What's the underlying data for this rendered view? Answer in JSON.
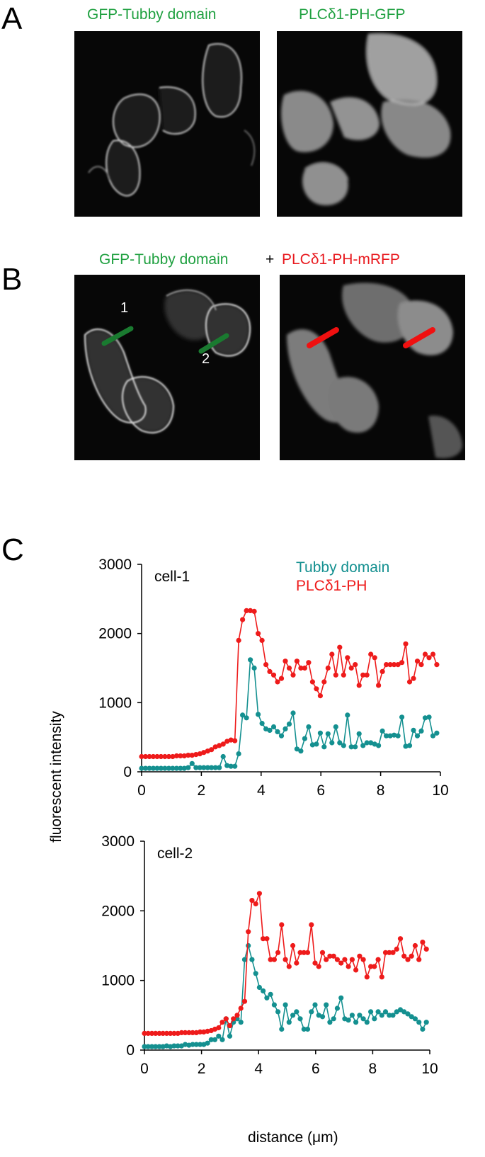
{
  "panel_a": {
    "letter": "A",
    "left_title": "GFP-Tubby domain",
    "right_title": "PLCδ1-PH-GFP"
  },
  "panel_b": {
    "letter": "B",
    "title_part1": "GFP-Tubby domain",
    "title_plus": "+",
    "title_part2": "PLCδ1-PH-mRFP",
    "marker1": "1",
    "marker2": "2"
  },
  "panel_c": {
    "letter": "C",
    "ylabel": "fluorescent intensity",
    "xlabel": "distance (μm)"
  },
  "colors": {
    "green_text": "#1fa040",
    "red_text": "#e8191e",
    "tubby_series": "#149090",
    "plc_series": "#ee1b1b",
    "green_marker": "#1a7a30",
    "red_marker": "#f01010"
  },
  "chart_data": [
    {
      "type": "line",
      "annotation": "cell-1",
      "ylim": [
        0,
        3000
      ],
      "xlim": [
        0,
        10
      ],
      "yticks": [
        "0",
        "1000",
        "2000",
        "3000"
      ],
      "xticks": [
        "0",
        "2",
        "4",
        "6",
        "8",
        "10"
      ],
      "legend": [
        "Tubby domain",
        "PLCδ1-PH"
      ],
      "series": [
        {
          "name": "Tubby domain",
          "x": [
            0,
            0.13,
            0.26,
            0.39,
            0.52,
            0.65,
            0.78,
            0.91,
            1.04,
            1.17,
            1.3,
            1.43,
            1.56,
            1.69,
            1.82,
            1.95,
            2.08,
            2.21,
            2.34,
            2.47,
            2.6,
            2.73,
            2.86,
            2.99,
            3.12,
            3.25,
            3.38,
            3.51,
            3.64,
            3.77,
            3.9,
            4.03,
            4.16,
            4.29,
            4.42,
            4.55,
            4.68,
            4.81,
            4.94,
            5.07,
            5.2,
            5.33,
            5.46,
            5.59,
            5.72,
            5.85,
            5.98,
            6.11,
            6.24,
            6.37,
            6.5,
            6.63,
            6.76,
            6.89,
            7.02,
            7.15,
            7.28,
            7.41,
            7.54,
            7.67,
            7.8,
            7.93,
            8.06,
            8.19,
            8.32,
            8.45,
            8.58,
            8.71,
            8.84,
            8.97,
            9.1,
            9.23,
            9.36,
            9.49,
            9.62,
            9.75,
            9.88
          ],
          "y": [
            50,
            50,
            50,
            50,
            50,
            50,
            50,
            50,
            50,
            50,
            50,
            50,
            60,
            120,
            60,
            60,
            60,
            60,
            60,
            60,
            60,
            220,
            90,
            80,
            80,
            260,
            820,
            780,
            1620,
            1500,
            830,
            700,
            620,
            600,
            650,
            580,
            520,
            620,
            690,
            850,
            330,
            300,
            480,
            650,
            390,
            400,
            560,
            360,
            550,
            420,
            650,
            420,
            380,
            820,
            360,
            360,
            550,
            380,
            420,
            420,
            400,
            380,
            590,
            520,
            520,
            530,
            520,
            790,
            370,
            380,
            600,
            520,
            590,
            780,
            790,
            520,
            560
          ]
        },
        {
          "name": "PLCδ1-PH",
          "x": [
            0,
            0.13,
            0.26,
            0.39,
            0.52,
            0.65,
            0.78,
            0.91,
            1.04,
            1.17,
            1.3,
            1.43,
            1.56,
            1.69,
            1.82,
            1.95,
            2.08,
            2.21,
            2.34,
            2.47,
            2.6,
            2.73,
            2.86,
            2.99,
            3.12,
            3.25,
            3.38,
            3.51,
            3.64,
            3.77,
            3.9,
            4.03,
            4.16,
            4.29,
            4.42,
            4.55,
            4.68,
            4.81,
            4.94,
            5.07,
            5.2,
            5.33,
            5.46,
            5.59,
            5.72,
            5.85,
            5.98,
            6.11,
            6.24,
            6.37,
            6.5,
            6.63,
            6.76,
            6.89,
            7.02,
            7.15,
            7.28,
            7.41,
            7.54,
            7.67,
            7.8,
            7.93,
            8.06,
            8.19,
            8.32,
            8.45,
            8.58,
            8.71,
            8.84,
            8.97,
            9.1,
            9.23,
            9.36,
            9.49,
            9.62,
            9.75,
            9.88
          ],
          "y": [
            220,
            220,
            220,
            220,
            220,
            220,
            220,
            220,
            220,
            230,
            230,
            230,
            240,
            240,
            250,
            260,
            280,
            300,
            320,
            360,
            380,
            400,
            440,
            460,
            450,
            1900,
            2200,
            2330,
            2330,
            2320,
            2000,
            1900,
            1550,
            1450,
            1400,
            1300,
            1350,
            1600,
            1500,
            1400,
            1600,
            1500,
            1500,
            1580,
            1300,
            1200,
            1100,
            1300,
            1500,
            1700,
            1400,
            1800,
            1400,
            1650,
            1500,
            1550,
            1250,
            1400,
            1400,
            1700,
            1650,
            1250,
            1450,
            1550,
            1550,
            1550,
            1550,
            1580,
            1850,
            1300,
            1350,
            1600,
            1550,
            1700,
            1650,
            1700,
            1550
          ]
        }
      ]
    },
    {
      "type": "line",
      "annotation": "cell-2",
      "ylim": [
        0,
        3000
      ],
      "xlim": [
        0,
        10
      ],
      "yticks": [
        "0",
        "1000",
        "2000",
        "3000"
      ],
      "xticks": [
        "0",
        "2",
        "4",
        "6",
        "8",
        "10"
      ],
      "series": [
        {
          "name": "Tubby domain",
          "x": [
            0,
            0.13,
            0.26,
            0.39,
            0.52,
            0.65,
            0.78,
            0.91,
            1.04,
            1.17,
            1.3,
            1.43,
            1.56,
            1.69,
            1.82,
            1.95,
            2.08,
            2.21,
            2.34,
            2.47,
            2.6,
            2.73,
            2.86,
            2.99,
            3.12,
            3.25,
            3.38,
            3.51,
            3.64,
            3.77,
            3.9,
            4.03,
            4.16,
            4.29,
            4.42,
            4.55,
            4.68,
            4.81,
            4.94,
            5.07,
            5.2,
            5.33,
            5.46,
            5.59,
            5.72,
            5.85,
            5.98,
            6.11,
            6.24,
            6.37,
            6.5,
            6.63,
            6.76,
            6.89,
            7.02,
            7.15,
            7.28,
            7.41,
            7.54,
            7.67,
            7.8,
            7.93,
            8.06,
            8.19,
            8.32,
            8.45,
            8.58,
            8.71,
            8.84,
            8.97,
            9.1,
            9.23,
            9.36,
            9.49,
            9.62,
            9.75,
            9.88
          ],
          "y": [
            50,
            50,
            50,
            50,
            50,
            50,
            60,
            50,
            60,
            60,
            60,
            80,
            70,
            80,
            80,
            80,
            80,
            100,
            150,
            150,
            200,
            150,
            450,
            200,
            400,
            450,
            400,
            1300,
            1500,
            1300,
            1100,
            900,
            850,
            750,
            800,
            650,
            550,
            300,
            650,
            400,
            500,
            550,
            450,
            300,
            300,
            550,
            650,
            500,
            480,
            650,
            400,
            450,
            600,
            750,
            450,
            430,
            500,
            400,
            500,
            450,
            400,
            550,
            450,
            550,
            500,
            550,
            500,
            500,
            550,
            580,
            550,
            520,
            480,
            450,
            400,
            300,
            400
          ]
        },
        {
          "name": "PLCδ1-PH",
          "x": [
            0,
            0.13,
            0.26,
            0.39,
            0.52,
            0.65,
            0.78,
            0.91,
            1.04,
            1.17,
            1.3,
            1.43,
            1.56,
            1.69,
            1.82,
            1.95,
            2.08,
            2.21,
            2.34,
            2.47,
            2.6,
            2.73,
            2.86,
            2.99,
            3.12,
            3.25,
            3.38,
            3.51,
            3.64,
            3.77,
            3.9,
            4.03,
            4.16,
            4.29,
            4.42,
            4.55,
            4.68,
            4.81,
            4.94,
            5.07,
            5.2,
            5.33,
            5.46,
            5.59,
            5.72,
            5.85,
            5.98,
            6.11,
            6.24,
            6.37,
            6.5,
            6.63,
            6.76,
            6.89,
            7.02,
            7.15,
            7.28,
            7.41,
            7.54,
            7.67,
            7.8,
            7.93,
            8.06,
            8.19,
            8.32,
            8.45,
            8.58,
            8.71,
            8.84,
            8.97,
            9.1,
            9.23,
            9.36,
            9.49,
            9.62,
            9.75,
            9.88
          ],
          "y": [
            240,
            240,
            240,
            240,
            240,
            240,
            240,
            240,
            240,
            240,
            250,
            250,
            250,
            250,
            250,
            260,
            260,
            270,
            280,
            300,
            320,
            400,
            450,
            350,
            450,
            500,
            600,
            700,
            1700,
            2150,
            2100,
            2250,
            1600,
            1600,
            1300,
            1300,
            1400,
            1800,
            1300,
            1200,
            1500,
            1250,
            1400,
            1400,
            1400,
            1800,
            1250,
            1200,
            1400,
            1300,
            1350,
            1350,
            1300,
            1250,
            1300,
            1200,
            1300,
            1150,
            1350,
            1300,
            1050,
            1200,
            1200,
            1300,
            1050,
            1400,
            1400,
            1400,
            1450,
            1600,
            1350,
            1300,
            1350,
            1500,
            1300,
            1550,
            1450
          ]
        }
      ]
    }
  ]
}
